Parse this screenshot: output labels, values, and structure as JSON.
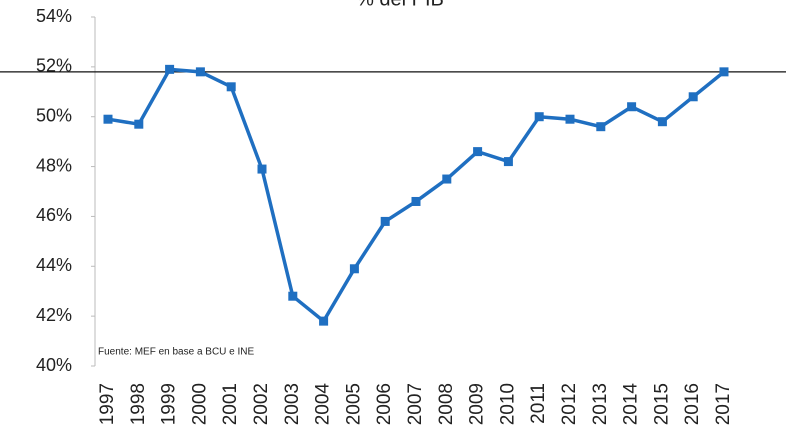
{
  "chart_data": {
    "type": "line",
    "title": "% del PIB",
    "annotation": "Fuente: MEF en base a BCU e INE",
    "categories": [
      "1997",
      "1998",
      "1999",
      "2000",
      "2001",
      "2002",
      "2003",
      "2004",
      "2005",
      "2006",
      "2007",
      "2008",
      "2009",
      "2010",
      "2011",
      "2012",
      "2013",
      "2014",
      "2015",
      "2016",
      "2017"
    ],
    "series": [
      {
        "color": "#1f6fc1",
        "values": [
          49.9,
          49.7,
          51.9,
          51.8,
          51.2,
          47.9,
          42.8,
          41.8,
          43.9,
          45.8,
          46.6,
          47.5,
          48.6,
          48.2,
          50.0,
          49.9,
          49.6,
          50.4,
          49.8,
          50.8,
          51.8
        ]
      }
    ],
    "reference_line": 51.8,
    "ylim": [
      40,
      54
    ],
    "yticks": [
      {
        "value": 40,
        "label": "40%"
      },
      {
        "value": 42,
        "label": "42%"
      },
      {
        "value": 44,
        "label": "44%"
      },
      {
        "value": 46,
        "label": "46%"
      },
      {
        "value": 48,
        "label": "48%"
      },
      {
        "value": 50,
        "label": "50%"
      },
      {
        "value": 52,
        "label": "52%"
      },
      {
        "value": 54,
        "label": "54%"
      }
    ],
    "grid": false
  }
}
